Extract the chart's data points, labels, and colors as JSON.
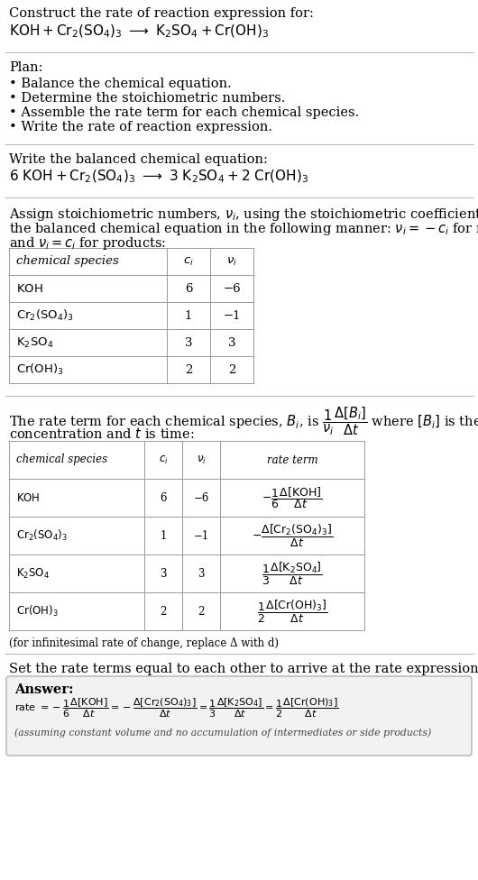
{
  "bg_color": "#ffffff",
  "title_line1": "Construct the rate of reaction expression for:",
  "plan_header": "Plan:",
  "plan_items": [
    "• Balance the chemical equation.",
    "• Determine the stoichiometric numbers.",
    "• Assemble the rate term for each chemical species.",
    "• Write the rate of reaction expression."
  ],
  "balanced_header": "Write the balanced chemical equation:",
  "infinitesimal_note": "(for infinitesimal rate of change, replace Δ with d)",
  "set_equal_header": "Set the rate terms equal to each other to arrive at the rate expression:",
  "answer_label": "Answer:",
  "answer_note": "(assuming constant volume and no accumulation of intermediates or side products)"
}
